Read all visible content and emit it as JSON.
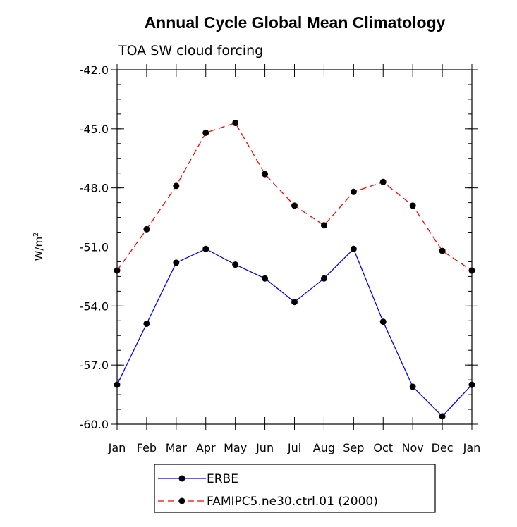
{
  "chart_data": {
    "type": "line",
    "title": "Annual Cycle Global Mean Climatology",
    "subtitle": "TOA SW cloud forcing",
    "ylabel": "W/m",
    "ylabel_superscript": "2",
    "xlabel": "",
    "categories": [
      "Jan",
      "Feb",
      "Mar",
      "Apr",
      "May",
      "Jun",
      "Jul",
      "Aug",
      "Sep",
      "Oct",
      "Nov",
      "Dec",
      "Jan"
    ],
    "ylim": [
      -60.0,
      -42.0
    ],
    "yticks": [
      "-42.0",
      "-45.0",
      "-48.0",
      "-51.0",
      "-54.0",
      "-57.0",
      "-60.0"
    ],
    "ytick_values": [
      -42,
      -45,
      -48,
      -51,
      -54,
      -57,
      -60
    ],
    "legend_position": "bottom",
    "series": [
      {
        "name": "ERBE",
        "color": "#0000ff",
        "dash": "solid",
        "marker": "filled-circle",
        "values": [
          -58.0,
          -54.9,
          -51.8,
          -51.1,
          -51.9,
          -52.6,
          -53.8,
          -52.6,
          -51.1,
          -54.8,
          -58.1,
          -59.6,
          -58.0
        ]
      },
      {
        "name": "FAMIPC5.ne30.ctrl.01 (2000)",
        "color": "#ff0000",
        "dash": "dashed",
        "marker": "filled-circle",
        "values": [
          -52.2,
          -50.1,
          -47.9,
          -45.2,
          -44.7,
          -47.3,
          -48.9,
          -49.9,
          -48.2,
          -47.7,
          -48.9,
          -51.2,
          -52.2
        ]
      }
    ]
  }
}
